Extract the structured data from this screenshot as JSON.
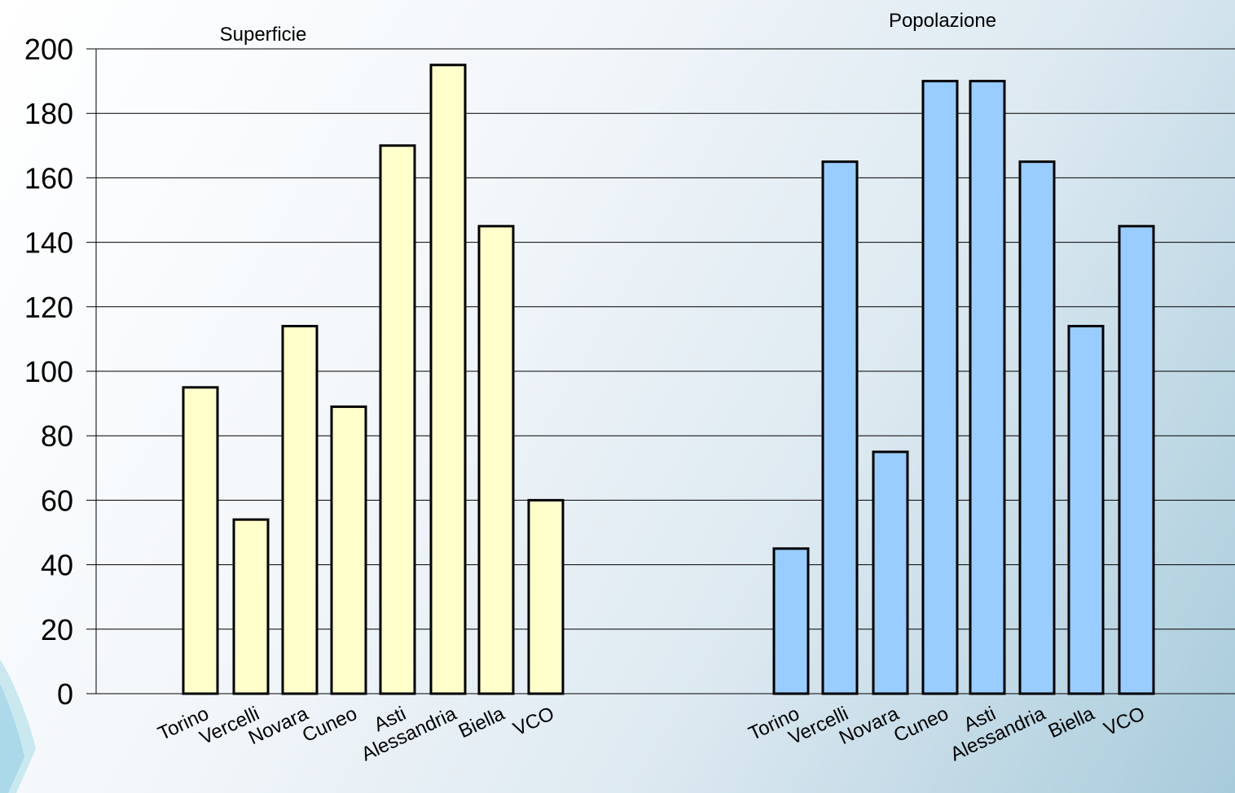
{
  "chart_data": {
    "type": "bar",
    "ylim": [
      0,
      200
    ],
    "yticks": [
      0,
      20,
      40,
      60,
      80,
      100,
      120,
      140,
      160,
      180,
      200
    ],
    "grid": true,
    "panels": [
      {
        "title": "Superficie",
        "categories": [
          "Torino",
          "Vercelli",
          "Novara",
          "Cuneo",
          "Asti",
          "Alessandria",
          "Biella",
          "VCO"
        ],
        "values": [
          95,
          54,
          114,
          89,
          170,
          195,
          145,
          60
        ],
        "color": "#ffffcc"
      },
      {
        "title": "Popolazione",
        "categories": [
          "Torino",
          "Vercelli",
          "Novara",
          "Cuneo",
          "Asti",
          "Alessandria",
          "Biella",
          "VCO"
        ],
        "values": [
          45,
          165,
          75,
          190,
          190,
          165,
          114,
          145
        ],
        "color": "#99ccff"
      }
    ]
  }
}
